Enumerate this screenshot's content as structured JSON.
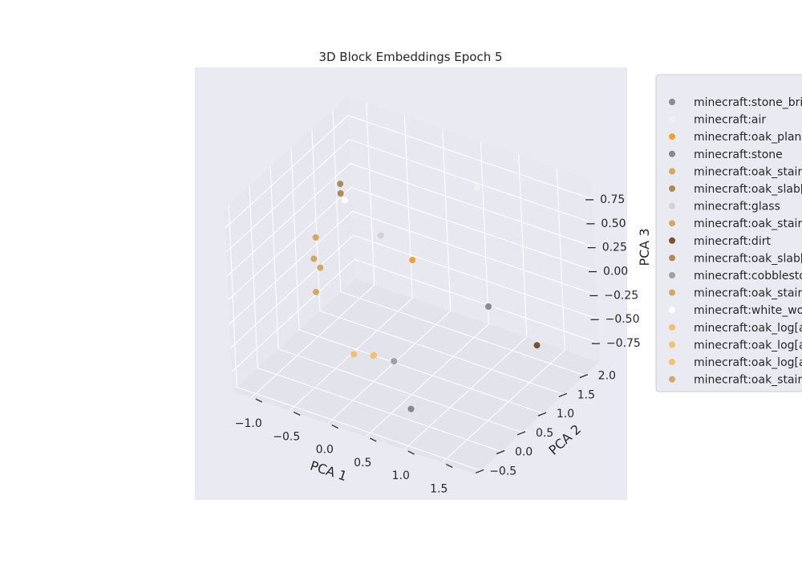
{
  "chart_data": {
    "type": "scatter",
    "projection": "3d",
    "title": "3D Block Embeddings Epoch 5",
    "xlabel": "PCA 1",
    "ylabel": "PCA 2",
    "zlabel": "PCA 3",
    "xticks": [
      "−1.0",
      "−0.5",
      "0.0",
      "0.5",
      "1.0",
      "1.5"
    ],
    "yticks": [
      "−0.5",
      "0.0",
      "0.5",
      "1.0",
      "1.5",
      "2.0"
    ],
    "zticks": [
      "−0.75",
      "−0.50",
      "−0.25",
      "0.00",
      "0.25",
      "0.50",
      "0.75"
    ],
    "xlim": [
      -1.25,
      1.95
    ],
    "ylim": [
      -0.6,
      2.35
    ],
    "zlim": [
      -0.95,
      0.95
    ],
    "grid": true,
    "legend_position": "right, outside plot (clipped)",
    "series": [
      {
        "name": "minecraft:stone_bric",
        "color": "#8c8c8c",
        "x": 1.2,
        "y": 1.15,
        "z": -0.1
      },
      {
        "name": "minecraft:air",
        "color": "#f0f0f0",
        "x": 0.6,
        "y": 2.05,
        "z": 0.62
      },
      {
        "name": "minecraft:oak_plank",
        "color": "#f0a030",
        "x": 0.3,
        "y": 1.0,
        "z": 0.2
      },
      {
        "name": "minecraft:stone",
        "color": "#888888",
        "x": 0.8,
        "y": -0.05,
        "z": -0.8
      },
      {
        "name": "minecraft:oak_stairs",
        "color": "#d4a862",
        "x": -0.55,
        "y": 0.2,
        "z": 0.3
      },
      {
        "name": "minecraft:oak_slab[t",
        "color": "#b08a55",
        "x": -0.3,
        "y": 0.45,
        "z": 0.95
      },
      {
        "name": "minecraft:glass",
        "color": "#d8d0d0",
        "x": -0.05,
        "y": 0.9,
        "z": 0.4
      },
      {
        "name": "minecraft:oak_stairs",
        "color": "#d4a862",
        "x": -0.5,
        "y": 0.25,
        "z": 0.2
      },
      {
        "name": "minecraft:dirt",
        "color": "#7a5030",
        "x": 1.65,
        "y": 1.45,
        "z": -0.5
      },
      {
        "name": "minecraft:oak_slab[t",
        "color": "#b08a55",
        "x": -0.3,
        "y": 0.45,
        "z": 1.05
      },
      {
        "name": "minecraft:cobblestor",
        "color": "#a0a0a0",
        "x": 0.4,
        "y": 0.3,
        "z": -0.55
      },
      {
        "name": "minecraft:oak_stairs",
        "color": "#d4a862",
        "x": -0.6,
        "y": 0.35,
        "z": 0.45
      },
      {
        "name": "minecraft:white_woc",
        "color": "#ffffff",
        "x": -0.45,
        "y": 0.8,
        "z": 0.7
      },
      {
        "name": "minecraft:oak_log[a:",
        "color": "#f2c070",
        "x": 0.1,
        "y": -0.1,
        "z": -0.4
      },
      {
        "name": "minecraft:oak_log[a:",
        "color": "#f2c070",
        "x": 0.25,
        "y": 0.1,
        "z": -0.45
      },
      {
        "name": "minecraft:oak_log[a:",
        "color": "#f2c070",
        "x": 0.3,
        "y": 0.0,
        "z": -0.4
      },
      {
        "name": "minecraft:oak_stairs",
        "color": "#d4a862",
        "x": -0.6,
        "y": 0.3,
        "z": -0.1
      }
    ]
  },
  "colors": {
    "panel_bg": "#eaeaf2",
    "pane_bg": "#e6e6ee",
    "grid": "#ffffff",
    "text": "#262626",
    "legend_bg": "#eaeaf2",
    "legend_border": "#cccccc"
  }
}
